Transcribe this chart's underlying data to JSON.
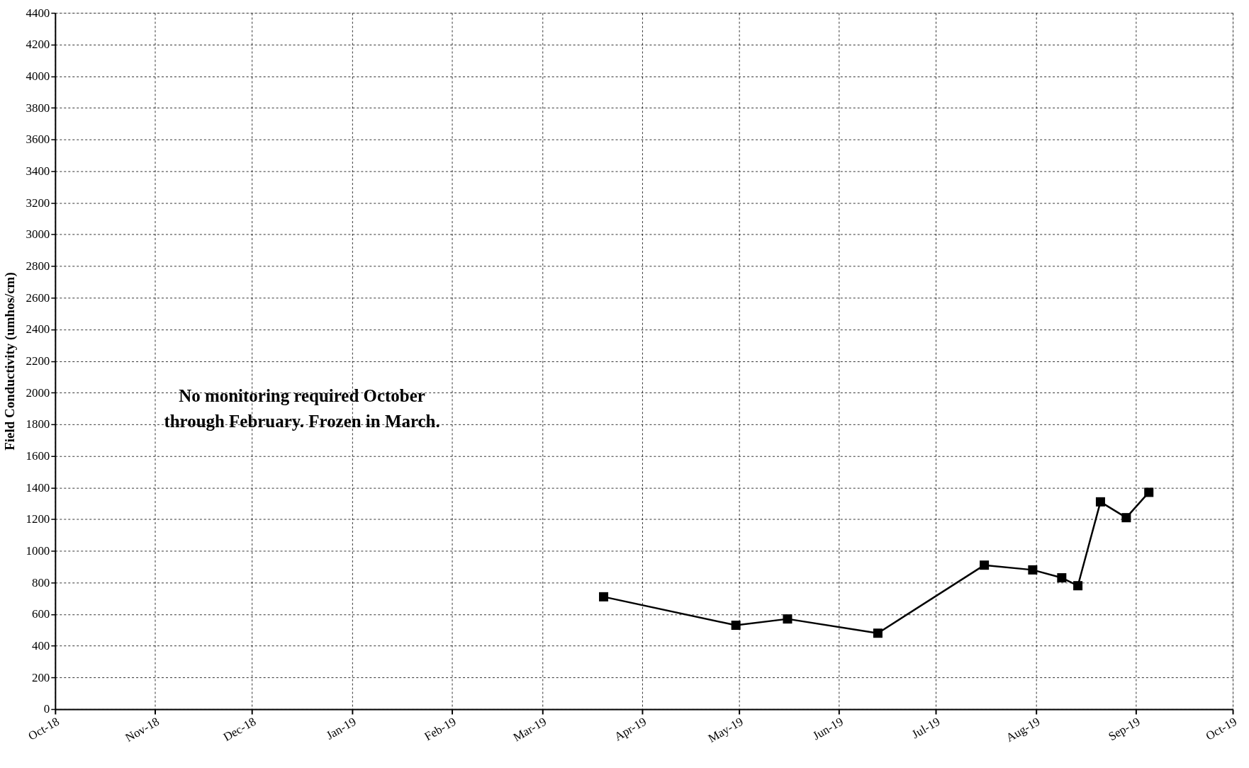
{
  "chart_data": {
    "type": "line",
    "ylabel": "Field Conductivity (umhos/cm)",
    "x": [
      "2019-03-20",
      "2019-04-30",
      "2019-05-16",
      "2019-06-13",
      "2019-07-16",
      "2019-07-31",
      "2019-08-09",
      "2019-08-14",
      "2019-08-21",
      "2019-08-29",
      "2019-09-05"
    ],
    "series": [
      {
        "color": "#000000",
        "values": [
          710,
          530,
          570,
          480,
          910,
          880,
          830,
          780,
          1310,
          1210,
          1370
        ]
      }
    ],
    "xlim": [
      "2018-10-01",
      "2019-10-01"
    ],
    "xticks": [
      {
        "value": "2018-10-01",
        "label": "Oct-18"
      },
      {
        "value": "2018-11-01",
        "label": "Nov-18"
      },
      {
        "value": "2018-12-01",
        "label": "Dec-18"
      },
      {
        "value": "2019-01-01",
        "label": "Jan-19"
      },
      {
        "value": "2019-02-01",
        "label": "Feb-19"
      },
      {
        "value": "2019-03-01",
        "label": "Mar-19"
      },
      {
        "value": "2019-04-01",
        "label": "Apr-19"
      },
      {
        "value": "2019-05-01",
        "label": "May-19"
      },
      {
        "value": "2019-06-01",
        "label": "Jun-19"
      },
      {
        "value": "2019-07-01",
        "label": "Jul-19"
      },
      {
        "value": "2019-08-01",
        "label": "Aug-19"
      },
      {
        "value": "2019-09-01",
        "label": "Sep-19"
      },
      {
        "value": "2019-10-01",
        "label": "Oct-19"
      }
    ],
    "ylim": [
      0,
      4400
    ],
    "yticks": [
      0,
      200,
      400,
      600,
      800,
      1000,
      1200,
      1400,
      1600,
      1800,
      2000,
      2200,
      2400,
      2600,
      2800,
      3000,
      3200,
      3400,
      3600,
      3800,
      4000,
      4200,
      4400
    ],
    "grid": true,
    "marker": "square",
    "line_style": "solid",
    "annotations": [
      "No monitoring required October through February. Frozen in March."
    ]
  }
}
